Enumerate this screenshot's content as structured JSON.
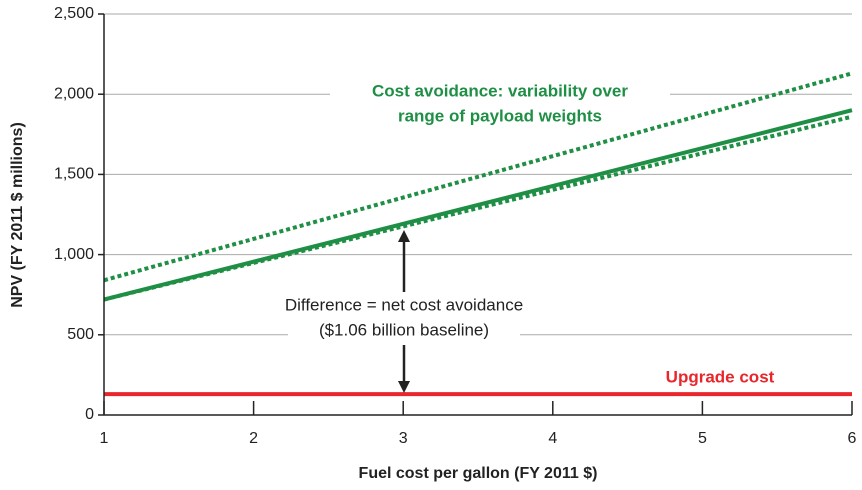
{
  "chart_data": {
    "type": "line",
    "xlabel": "Fuel cost per gallon (FY 2011 $)",
    "ylabel": "NPV (FY 2011 $ millions)",
    "xlim": [
      1,
      6
    ],
    "xticks": [
      1,
      2,
      3,
      4,
      5,
      6
    ],
    "ylim": [
      0,
      2500
    ],
    "yticks": [
      0,
      500,
      {
        "value": 1000,
        "label": "1,000"
      },
      {
        "value": 1500,
        "label": "1,500"
      },
      {
        "value": 2000,
        "label": "2,000"
      },
      {
        "value": 2500,
        "label": "2,500"
      }
    ],
    "grid": true,
    "series": [
      {
        "x": [
          1,
          6
        ],
        "values": [
          840,
          2130
        ],
        "color": "#1f8f45",
        "dash": "dotted"
      },
      {
        "x": [
          1,
          6
        ],
        "values": [
          720,
          1860
        ],
        "color": "#1f8f45",
        "dash": "dotted"
      },
      {
        "x": [
          1,
          6
        ],
        "values": [
          720,
          1900
        ],
        "color": "#1f8f45",
        "dash": "solid"
      },
      {
        "name": "Upgrade cost",
        "x": [
          1,
          6
        ],
        "values": [
          130,
          130
        ],
        "color": "#e8262b",
        "dash": "solid"
      }
    ],
    "annotations": [
      {
        "lines": [
          "Cost avoidance: variability over",
          "range of payload weights"
        ]
      },
      {
        "lines": [
          "Difference = net cost avoidance",
          "($1.06 billion baseline)"
        ]
      }
    ]
  }
}
